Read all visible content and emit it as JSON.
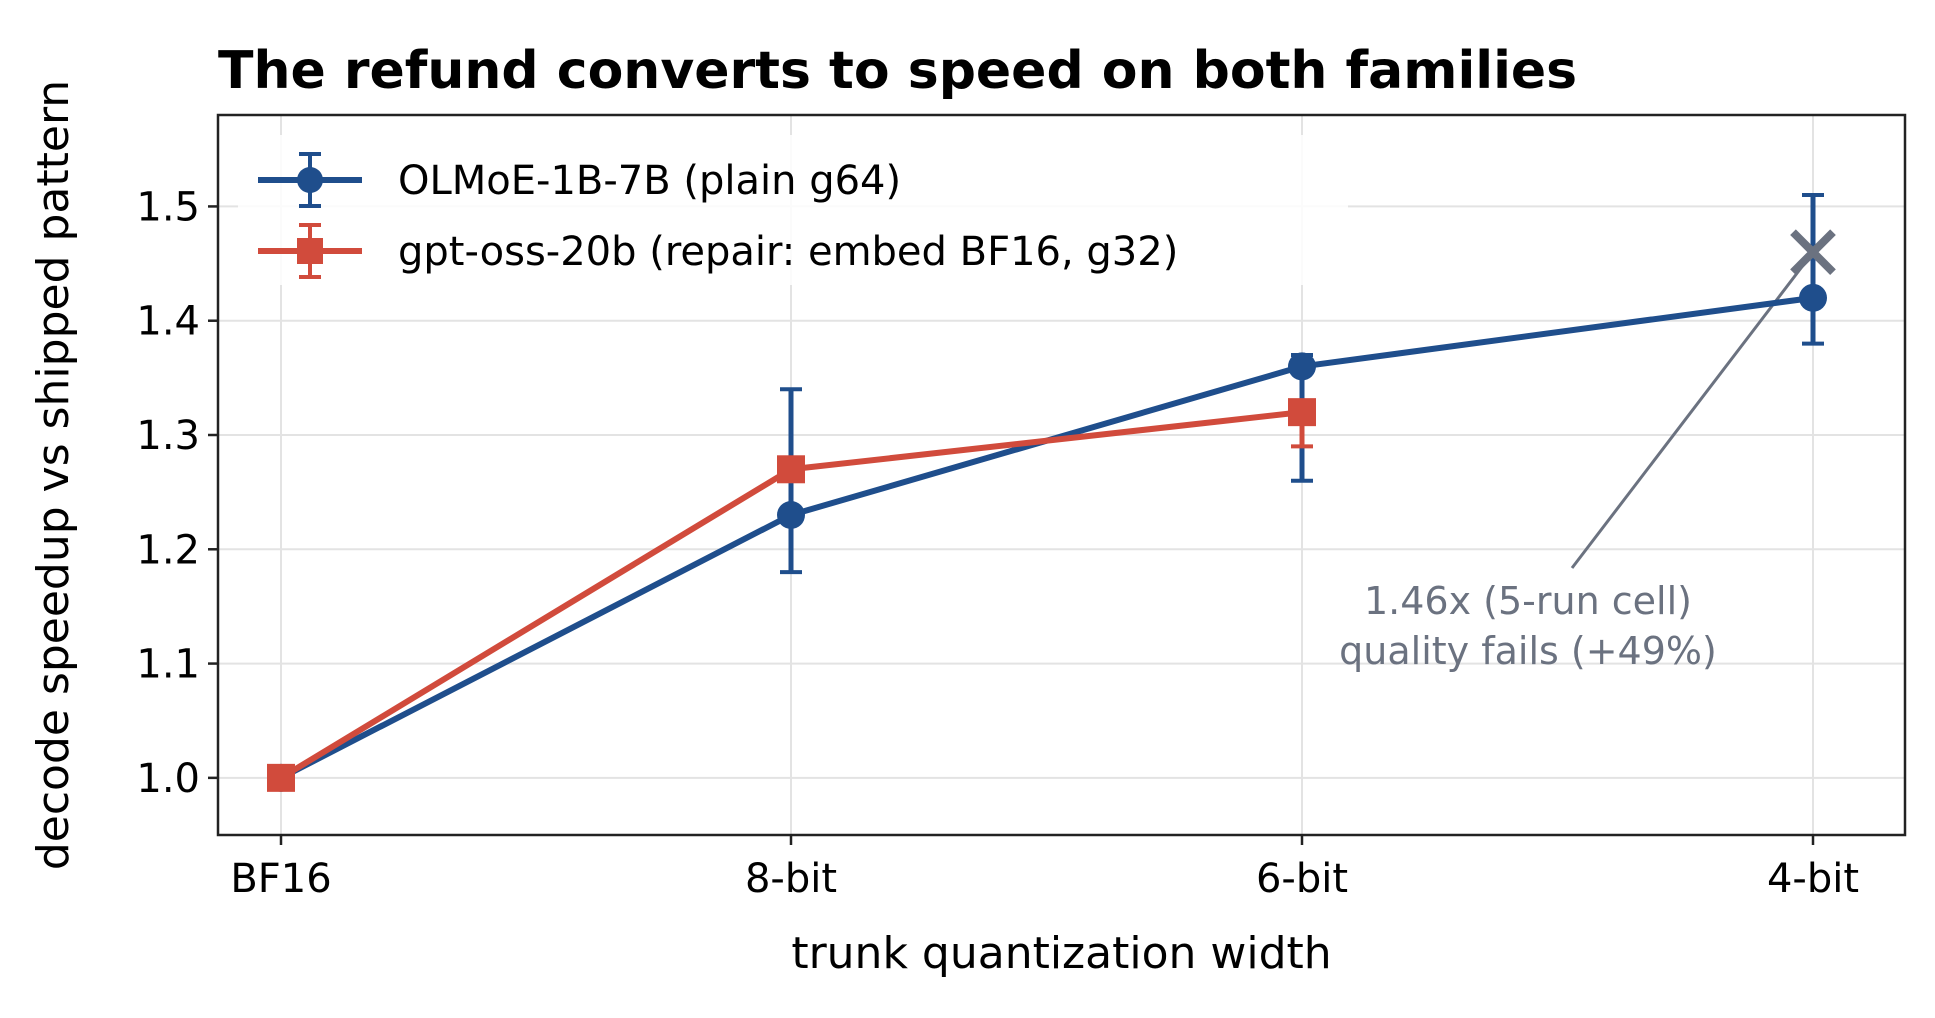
{
  "chart_data": {
    "type": "line",
    "title": "The refund converts to speed on both families",
    "xlabel": "trunk quantization width",
    "ylabel": "decode speedup vs shipped pattern",
    "categories": [
      "BF16",
      "8-bit",
      "6-bit",
      "4-bit"
    ],
    "ylim": [
      0.95,
      1.58
    ],
    "yticks": [
      "1.0",
      "1.1",
      "1.2",
      "1.3",
      "1.4",
      "1.5"
    ],
    "grid": true,
    "legend_position": "top-left",
    "series": [
      {
        "name": "OLMoE-1B-7B (plain g64)",
        "color": "#1f4e8c",
        "marker": "circle",
        "values": [
          1.0,
          1.23,
          1.36,
          1.42
        ],
        "err_low": [
          null,
          1.18,
          1.26,
          1.38
        ],
        "err_high": [
          null,
          1.34,
          1.37,
          1.51
        ]
      },
      {
        "name": "gpt-oss-20b (repair: embed BF16, g32)",
        "color": "#d14b3c",
        "marker": "square",
        "values": [
          1.0,
          1.27,
          1.32,
          null
        ],
        "err_low": [
          null,
          1.27,
          1.29,
          null
        ],
        "err_high": [
          null,
          1.27,
          1.33,
          null
        ]
      }
    ],
    "failed_point": {
      "category": "4-bit",
      "value": 1.46,
      "color": "#6b7280",
      "marker": "x"
    },
    "annotation": {
      "lines": [
        "1.46x (5-run cell)",
        "quality fails (+49%)"
      ],
      "color": "#6b7280"
    }
  }
}
